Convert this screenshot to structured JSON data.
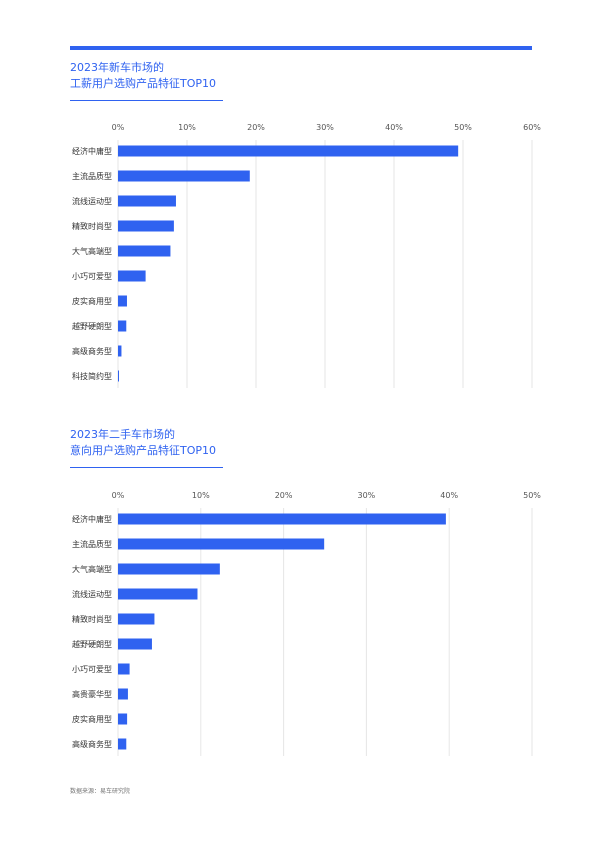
{
  "accent_color": "#2f62f0",
  "source": "数据来源：易车研究院",
  "chart_data": [
    {
      "type": "bar",
      "orientation": "horizontal",
      "title_lines": [
        "2023年新车市场的",
        "工薪用户选购产品特征TOP10"
      ],
      "x_ticks": [
        "0%",
        "10%",
        "20%",
        "30%",
        "40%",
        "50%",
        "60%"
      ],
      "xlim": [
        0,
        60
      ],
      "unit": "%",
      "grid": true,
      "categories": [
        "经济中庸型",
        "主流品质型",
        "流线运动型",
        "精致时尚型",
        "大气高端型",
        "小巧可爱型",
        "皮实商用型",
        "越野硬朗型",
        "高级商务型",
        "科技简约型"
      ],
      "values": [
        49.3,
        19.1,
        8.4,
        8.1,
        7.6,
        4.0,
        1.3,
        1.2,
        0.5,
        0.1
      ]
    },
    {
      "type": "bar",
      "orientation": "horizontal",
      "title_lines": [
        "2023年二手车市场的",
        "意向用户选购产品特征TOP10"
      ],
      "x_ticks": [
        "0%",
        "10%",
        "20%",
        "30%",
        "40%",
        "50%"
      ],
      "xlim": [
        0,
        50
      ],
      "unit": "%",
      "grid": true,
      "categories": [
        "经济中庸型",
        "主流品质型",
        "大气高端型",
        "流线运动型",
        "精致时尚型",
        "越野硬朗型",
        "小巧可爱型",
        "高贵豪华型",
        "皮实商用型",
        "高级商务型"
      ],
      "values": [
        39.6,
        24.9,
        12.3,
        9.6,
        4.4,
        4.1,
        1.4,
        1.2,
        1.1,
        1.0
      ]
    }
  ]
}
